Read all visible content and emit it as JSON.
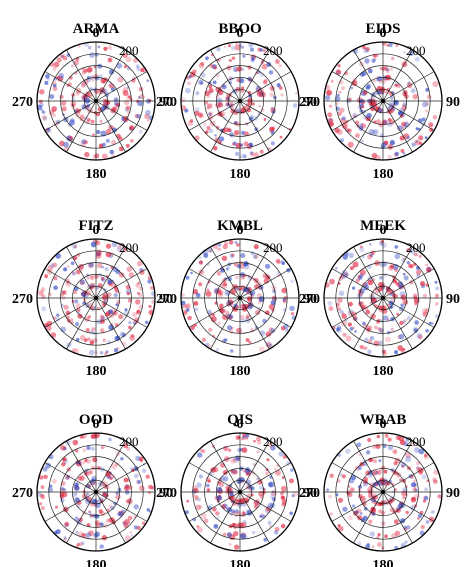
{
  "figure": {
    "colors": {
      "positive": "#e2304a",
      "negative": "#3f55c8",
      "grid": "#222222"
    }
  },
  "chart_data": [
    {
      "type": "polar-scatter",
      "title": "ARMA",
      "axis_labels": {
        "top": "0",
        "right": "90",
        "bottom": "180",
        "left": "270"
      },
      "radial_label": "200",
      "grid": true
    },
    {
      "type": "polar-scatter",
      "title": "BBOO",
      "axis_labels": {
        "top": "0",
        "right": "90",
        "bottom": "180",
        "left": "270"
      },
      "radial_label": "200",
      "grid": true
    },
    {
      "type": "polar-scatter",
      "title": "EIDS",
      "axis_labels": {
        "top": "0",
        "right": "90",
        "bottom": "180",
        "left": "270"
      },
      "radial_label": "200",
      "grid": true
    },
    {
      "type": "polar-scatter",
      "title": "FITZ",
      "axis_labels": {
        "top": "0",
        "right": "90",
        "bottom": "180",
        "left": "270"
      },
      "radial_label": "200",
      "grid": true
    },
    {
      "type": "polar-scatter",
      "title": "KMBL",
      "axis_labels": {
        "top": "0",
        "right": "90",
        "bottom": "180",
        "left": "270"
      },
      "radial_label": "200",
      "grid": true
    },
    {
      "type": "polar-scatter",
      "title": "MEEK",
      "axis_labels": {
        "top": "0",
        "right": "90",
        "bottom": "180",
        "left": "270"
      },
      "radial_label": "200",
      "grid": true
    },
    {
      "type": "polar-scatter",
      "title": "OOD",
      "axis_labels": {
        "top": "0",
        "right": "90",
        "bottom": "180",
        "left": "270"
      },
      "radial_label": "200",
      "grid": true
    },
    {
      "type": "polar-scatter",
      "title": "QIS",
      "axis_labels": {
        "top": "0",
        "right": "90",
        "bottom": "180",
        "left": "270"
      },
      "radial_label": "200",
      "grid": true
    },
    {
      "type": "polar-scatter",
      "title": "WRAB",
      "axis_labels": {
        "top": "0",
        "right": "90",
        "bottom": "180",
        "left": "270"
      },
      "radial_label": "200",
      "grid": true
    }
  ]
}
